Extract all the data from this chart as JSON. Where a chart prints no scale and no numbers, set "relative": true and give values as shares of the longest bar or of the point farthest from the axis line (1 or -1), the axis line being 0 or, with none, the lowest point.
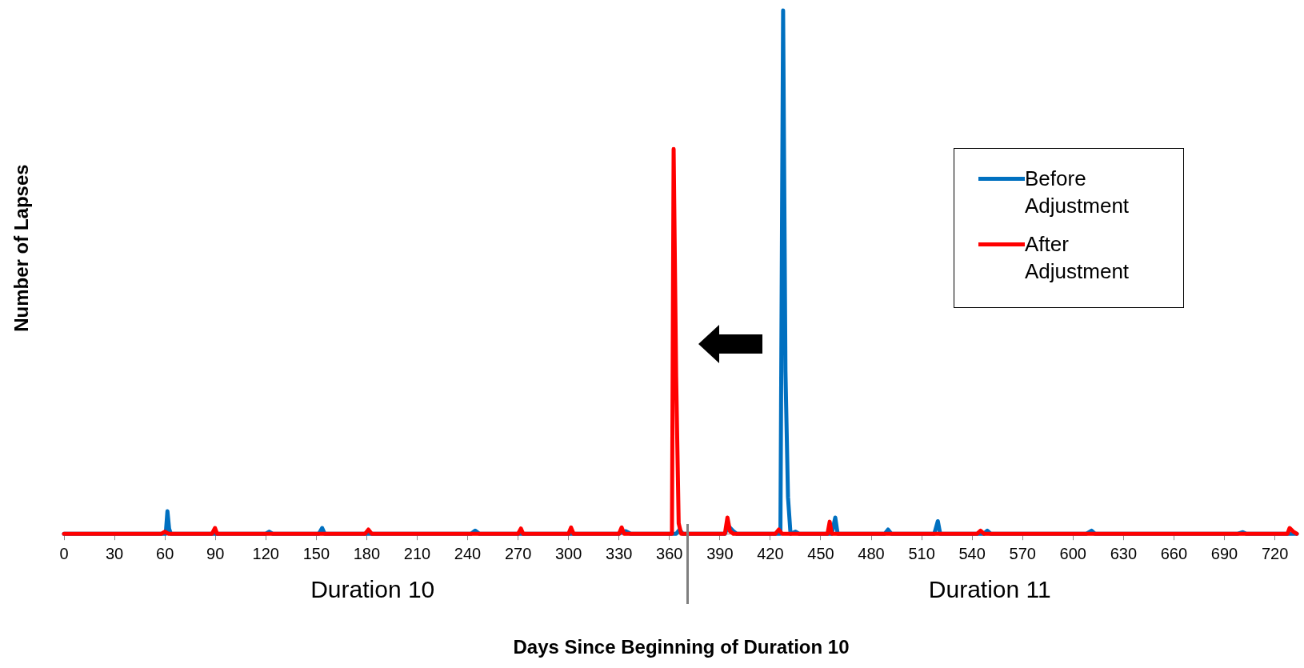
{
  "chart_data": {
    "type": "line",
    "relative": true,
    "xlabel": "Days Since Beginning of Duration 10",
    "ylabel": "Number of Lapses",
    "xlim": [
      0,
      734
    ],
    "xticks": [
      0,
      30,
      60,
      90,
      120,
      150,
      180,
      210,
      240,
      270,
      300,
      330,
      360,
      390,
      420,
      450,
      480,
      510,
      540,
      570,
      600,
      630,
      660,
      690,
      720
    ],
    "grid": false,
    "legend": "top right",
    "marker": "none",
    "line_style": "solid",
    "series": [
      {
        "name": "Before Adjustment",
        "color": "#0070c0",
        "x": [
          0,
          55,
          60.5,
          61.5,
          62.5,
          63.5,
          120,
          122,
          124,
          151.5,
          153.5,
          155,
          242,
          244.5,
          247,
          330,
          334,
          337,
          364,
          366,
          368,
          393,
          395,
          398,
          400,
          426,
          427.6,
          429,
          430.5,
          432,
          435,
          437,
          456.5,
          458.6,
          460,
          488,
          490,
          492,
          517.5,
          519.6,
          521,
          547,
          549,
          551,
          608,
          611,
          613,
          698,
          701,
          703,
          733
        ],
        "values": [
          0,
          0,
          0,
          0.043,
          0.01,
          0,
          0,
          0.004,
          0,
          0,
          0.011,
          0,
          0,
          0.006,
          0,
          0,
          0.005,
          0,
          0,
          0.008,
          0,
          0,
          0.015,
          0.005,
          0,
          0,
          1,
          0.31,
          0.07,
          0,
          0.004,
          0,
          0,
          0.031,
          0,
          0,
          0.008,
          0,
          0,
          0.024,
          0,
          0,
          0.006,
          0,
          0,
          0.006,
          0,
          0,
          0.003,
          0,
          0
        ]
      },
      {
        "name": "After Adjustment",
        "color": "#ff0000",
        "x": [
          0,
          58,
          60,
          62,
          88,
          89.8,
          91,
          179,
          181,
          183,
          270,
          271.7,
          273,
          300,
          301.5,
          303,
          330,
          331.6,
          333,
          361.5,
          362.5,
          364,
          365.5,
          367,
          393,
          394.5,
          396,
          398,
          423,
          425,
          427,
          454,
          455.3,
          456.5,
          543,
          545,
          547,
          727.5,
          728.8,
          731,
          733
        ],
        "values": [
          0,
          0,
          0.004,
          0,
          0,
          0.011,
          0,
          0,
          0.008,
          0,
          0,
          0.01,
          0,
          0,
          0.012,
          0,
          0,
          0.012,
          0,
          0,
          0.735,
          0.3,
          0.02,
          0,
          0,
          0.031,
          0.005,
          0,
          0,
          0.008,
          0,
          0,
          0.023,
          0,
          0,
          0.006,
          0,
          0,
          0.011,
          0.004,
          0
        ]
      }
    ],
    "annotations": [
      "Duration 10",
      "Duration 11"
    ]
  }
}
